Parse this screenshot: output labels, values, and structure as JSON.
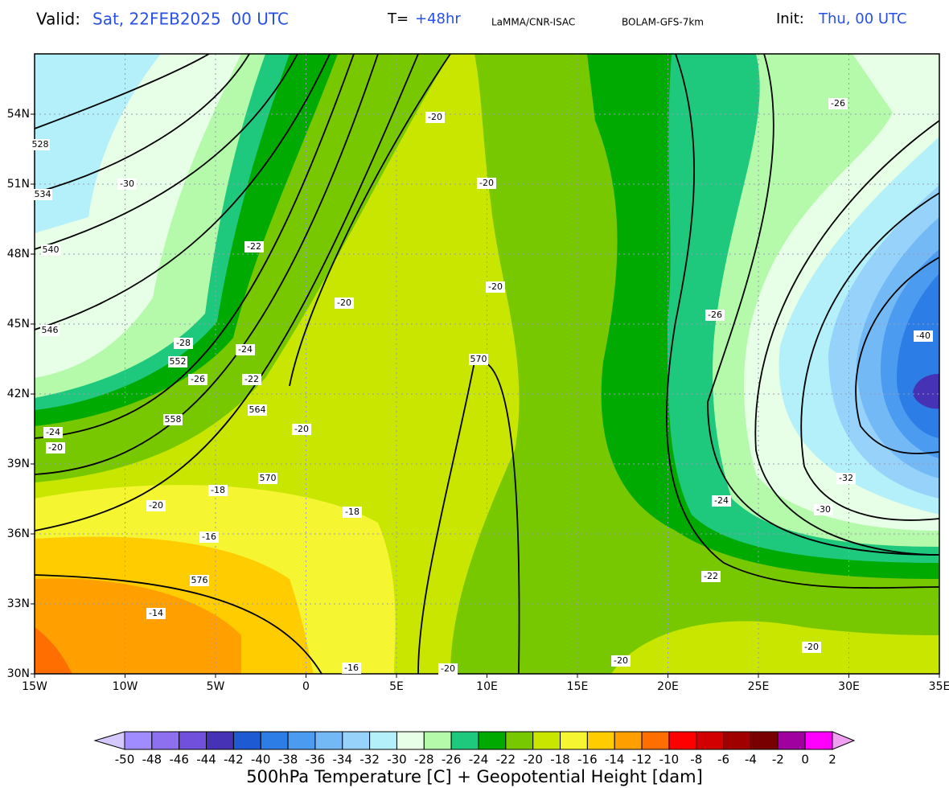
{
  "header": {
    "valid_label": "Valid:",
    "valid_value": "Sat, 22FEB2025  00 UTC",
    "forecast_label": "T=",
    "forecast_value": "+48hr",
    "source": "LaMMA/CNR-ISAC",
    "model": "BOLAM-GFS-7km",
    "init_label": "Init:",
    "init_value": "Thu, 00 UTC"
  },
  "map": {
    "lat_ticks": [
      {
        "value": 54,
        "label": "54N"
      },
      {
        "value": 51,
        "label": "51N"
      },
      {
        "value": 48,
        "label": "48N"
      },
      {
        "value": 45,
        "label": "45N"
      },
      {
        "value": 42,
        "label": "42N"
      },
      {
        "value": 39,
        "label": "39N"
      },
      {
        "value": 36,
        "label": "36N"
      },
      {
        "value": 33,
        "label": "33N"
      },
      {
        "value": 30,
        "label": "30N"
      }
    ],
    "lon_ticks": [
      {
        "value": -15,
        "label": "15W"
      },
      {
        "value": -10,
        "label": "10W"
      },
      {
        "value": -5,
        "label": "5W"
      },
      0,
      {
        "value": 5,
        "label": "5E"
      },
      {
        "value": 10,
        "label": "10E"
      },
      {
        "value": 15,
        "label": "15E"
      },
      {
        "value": 20,
        "label": "20E"
      },
      {
        "value": 25,
        "label": "25E"
      },
      {
        "value": 30,
        "label": "30E"
      },
      {
        "value": 35,
        "label": "35E"
      }
    ],
    "temperature_labels": [
      -20,
      -20,
      -26,
      -30,
      -22,
      -20,
      -20,
      -26,
      -40,
      -28,
      -24,
      -26,
      -22,
      -24,
      -20,
      -20,
      -18,
      -20,
      -24,
      -32,
      -30,
      -18,
      -16,
      -22,
      -14,
      -20,
      -20,
      -16,
      -20
    ],
    "height_labels": [
      528,
      534,
      540,
      546,
      552,
      558,
      564,
      570,
      570,
      576
    ]
  },
  "colorbar": {
    "title": "500hPa Temperature [C] + Geopotential Height [dam]",
    "ticks": [
      -50,
      -48,
      -46,
      -44,
      -42,
      -40,
      -38,
      -36,
      -34,
      -32,
      -30,
      -28,
      -26,
      -24,
      -22,
      -20,
      -18,
      -16,
      -14,
      -12,
      -10,
      -8,
      -6,
      -4,
      -2,
      0,
      2
    ],
    "colors": [
      "#d4c8ff",
      "#a08cff",
      "#8c70f0",
      "#7050dc",
      "#4632b4",
      "#1e5ad2",
      "#2d7de6",
      "#4b9bf0",
      "#73b9f5",
      "#96d2fa",
      "#b4f0fa",
      "#e6ffe6",
      "#b4faaa",
      "#1ec87d",
      "#00aa00",
      "#78c800",
      "#c8e600",
      "#f5f532",
      "#ffcc00",
      "#ffa000",
      "#ff6e00",
      "#ff0000",
      "#d20000",
      "#a00000",
      "#780000",
      "#a000a0",
      "#ff00ff",
      "#f0a0f0"
    ]
  }
}
